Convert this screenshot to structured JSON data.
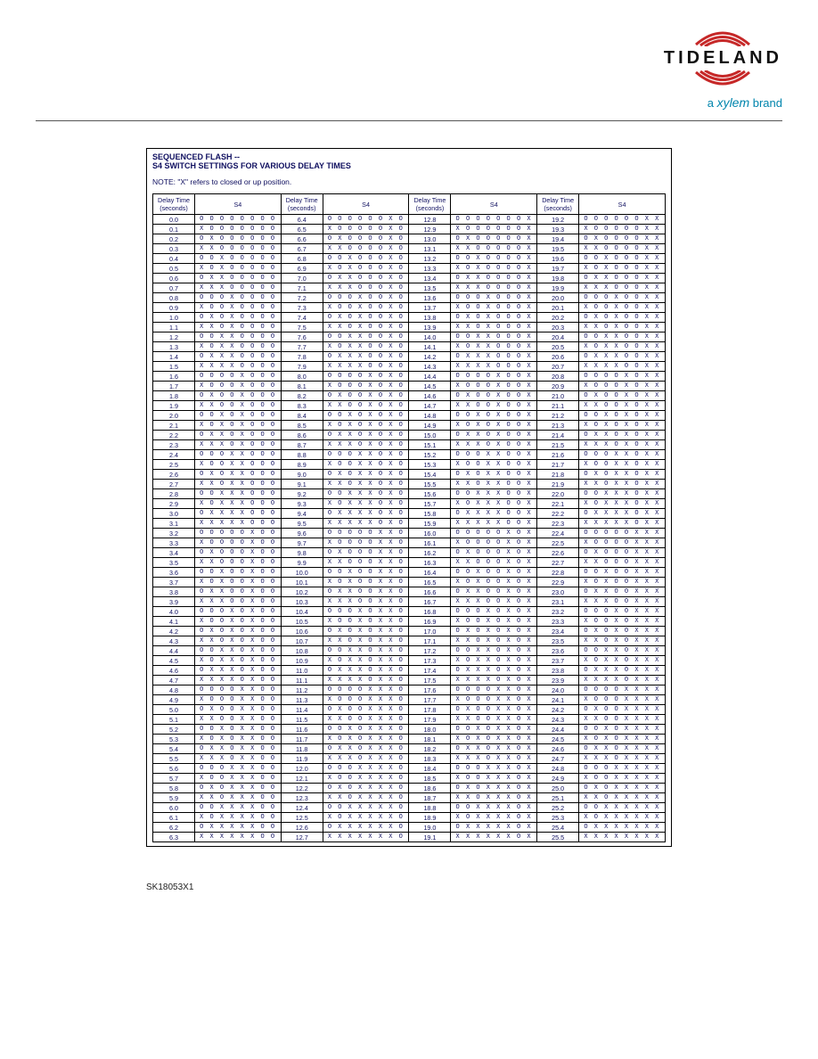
{
  "header": {
    "logo_text": "TIDELAND",
    "tagline_prefix": "a ",
    "tagline_brand": "xylem",
    "tagline_suffix": " brand",
    "logo_color": "#c62828",
    "tagline_color": "#0085ad"
  },
  "table": {
    "title_line1": "SEQUENCED FLASH --",
    "title_line2": "S4 SWITCH SETTINGS FOR VARIOUS DELAY TIMES",
    "note": "NOTE: \"X\" refers to closed or up position.",
    "header_delay_top": "Delay Time",
    "header_delay_bottom": "(seconds)",
    "header_s4": "S4",
    "rows": [
      [
        "0.0",
        "OOOOOOOO",
        "6.4",
        "OOOOOOXO",
        "12.8",
        "OOOOOOOX",
        "19.2",
        "OOOOOOXX"
      ],
      [
        "0.1",
        "XOOOOOOO",
        "6.5",
        "XOOOOOXO",
        "12.9",
        "XOOOOOOX",
        "19.3",
        "XOOOOOXX"
      ],
      [
        "0.2",
        "OXOOOOOO",
        "6.6",
        "OXOOOOXO",
        "13.0",
        "OXOOOOOX",
        "19.4",
        "OXOOOOXX"
      ],
      [
        "0.3",
        "XXOOOOOO",
        "6.7",
        "XXOOOOXO",
        "13.1",
        "XXOOOOOX",
        "19.5",
        "XXOOOOXX"
      ],
      [
        "0.4",
        "OOXOOOOO",
        "6.8",
        "OOXOOOXO",
        "13.2",
        "OOXOOOOX",
        "19.6",
        "OOXOOOXX"
      ],
      [
        "0.5",
        "XOXOOOOO",
        "6.9",
        "XOXOOOXO",
        "13.3",
        "XOXOOOOX",
        "19.7",
        "XOXOOOXX"
      ],
      [
        "0.6",
        "OXXOOOOO",
        "7.0",
        "OXXOOOXO",
        "13.4",
        "OXXOOOOX",
        "19.8",
        "OXXOOOXX"
      ],
      [
        "0.7",
        "XXXOOOOO",
        "7.1",
        "XXXOOOXO",
        "13.5",
        "XXXOOOOX",
        "19.9",
        "XXXOOOXX"
      ],
      [
        "0.8",
        "OOOXOOOO",
        "7.2",
        "OOOXOOXO",
        "13.6",
        "OOOXOOOX",
        "20.0",
        "OOOXOOXX"
      ],
      [
        "0.9",
        "XOOXOOOO",
        "7.3",
        "XOOXOOXO",
        "13.7",
        "XOOXOOOX",
        "20.1",
        "XOOXOOXX"
      ],
      [
        "1.0",
        "OXOXOOOO",
        "7.4",
        "OXOXOOXO",
        "13.8",
        "OXOXOOOX",
        "20.2",
        "OXOXOOXX"
      ],
      [
        "1.1",
        "XXOXOOOO",
        "7.5",
        "XXOXOOXO",
        "13.9",
        "XXOXOOOX",
        "20.3",
        "XXOXOOXX"
      ],
      [
        "1.2",
        "OOXXOOOO",
        "7.6",
        "OOXXOOXO",
        "14.0",
        "OOXXOOOX",
        "20.4",
        "OOXXOOXX"
      ],
      [
        "1.3",
        "XOXXOOOO",
        "7.7",
        "XOXXOOXO",
        "14.1",
        "XOXXOOOX",
        "20.5",
        "XOXXOOXX"
      ],
      [
        "1.4",
        "OXXXOOOO",
        "7.8",
        "OXXXOOXO",
        "14.2",
        "OXXXOOOX",
        "20.6",
        "OXXXOOXX"
      ],
      [
        "1.5",
        "XXXXOOOO",
        "7.9",
        "XXXXOOXO",
        "14.3",
        "XXXXOOOX",
        "20.7",
        "XXXXOOXX"
      ],
      [
        "1.6",
        "OOOOXOOO",
        "8.0",
        "OOOOXOXO",
        "14.4",
        "OOOOXOOX",
        "20.8",
        "OOOOXOXX"
      ],
      [
        "1.7",
        "XOOOXOOO",
        "8.1",
        "XOOOXOXO",
        "14.5",
        "XOOOXOOX",
        "20.9",
        "XOOOXOXX"
      ],
      [
        "1.8",
        "OXOOXOOO",
        "8.2",
        "OXOOXOXO",
        "14.6",
        "OXOOXOOX",
        "21.0",
        "OXOOXOXX"
      ],
      [
        "1.9",
        "XXOOXOOO",
        "8.3",
        "XXOOXOXO",
        "14.7",
        "XXOOXOOX",
        "21.1",
        "XXOOXOXX"
      ],
      [
        "2.0",
        "OOXOXOOO",
        "8.4",
        "OOXOXOXO",
        "14.8",
        "OOXOXOOX",
        "21.2",
        "OOXOXOXX"
      ],
      [
        "2.1",
        "XOXOXOOO",
        "8.5",
        "XOXOXOXO",
        "14.9",
        "XOXOXOOX",
        "21.3",
        "XOXOXOXX"
      ],
      [
        "2.2",
        "OXXOXOOO",
        "8.6",
        "OXXOXOXO",
        "15.0",
        "OXXOXOOX",
        "21.4",
        "OXXOXOXX"
      ],
      [
        "2.3",
        "XXXOXOOO",
        "8.7",
        "XXXOXOXO",
        "15.1",
        "XXXOXOOX",
        "21.5",
        "XXXOXOXX"
      ],
      [
        "2.4",
        "OOOXXOOO",
        "8.8",
        "OOOXXOXO",
        "15.2",
        "OOOXXOOX",
        "21.6",
        "OOOXXOXX"
      ],
      [
        "2.5",
        "XOOXXOOO",
        "8.9",
        "XOOXXOXO",
        "15.3",
        "XOOXXOOX",
        "21.7",
        "XOOXXOXX"
      ],
      [
        "2.6",
        "OXOXXOOO",
        "9.0",
        "OXOXXOXO",
        "15.4",
        "OXOXXOOX",
        "21.8",
        "OXOXXOXX"
      ],
      [
        "2.7",
        "XXOXXOOO",
        "9.1",
        "XXOXXOXO",
        "15.5",
        "XXOXXOOX",
        "21.9",
        "XXOXXOXX"
      ],
      [
        "2.8",
        "OOXXXOOO",
        "9.2",
        "OOXXXOXO",
        "15.6",
        "OOXXXOOX",
        "22.0",
        "OOXXXOXX"
      ],
      [
        "2.9",
        "XOXXXOOO",
        "9.3",
        "XOXXXOXO",
        "15.7",
        "XOXXXOOX",
        "22.1",
        "XOXXXOXX"
      ],
      [
        "3.0",
        "OXXXXOOO",
        "9.4",
        "OXXXXOXO",
        "15.8",
        "OXXXXOOX",
        "22.2",
        "OXXXXOXX"
      ],
      [
        "3.1",
        "XXXXXOOO",
        "9.5",
        "XXXXXOXO",
        "15.9",
        "XXXXXOOX",
        "22.3",
        "XXXXXOXX"
      ],
      [
        "3.2",
        "OOOOOXOO",
        "9.6",
        "OOOOOXXO",
        "16.0",
        "OOOOOXOX",
        "22.4",
        "OOOOOXXX"
      ],
      [
        "3.3",
        "XOOOOXOO",
        "9.7",
        "XOOOOXXO",
        "16.1",
        "XOOOOXOX",
        "22.5",
        "XOOOOXXX"
      ],
      [
        "3.4",
        "OXOOOXOO",
        "9.8",
        "OXOOOXXO",
        "16.2",
        "OXOOOXOX",
        "22.6",
        "OXOOOXXX"
      ],
      [
        "3.5",
        "XXOOOXOO",
        "9.9",
        "XXOOOXXO",
        "16.3",
        "XXOOOXOX",
        "22.7",
        "XXOOOXXX"
      ],
      [
        "3.6",
        "OOXOOXOO",
        "10.0",
        "OOXOOXXO",
        "16.4",
        "OOXOOXOX",
        "22.8",
        "OOXOOXXX"
      ],
      [
        "3.7",
        "XOXOOXOO",
        "10.1",
        "XOXOOXXO",
        "16.5",
        "XOXOOXOX",
        "22.9",
        "XOXOOXXX"
      ],
      [
        "3.8",
        "OXXOOXOO",
        "10.2",
        "OXXOOXXO",
        "16.6",
        "OXXOOXOX",
        "23.0",
        "OXXOOXXX"
      ],
      [
        "3.9",
        "XXXOOXOO",
        "10.3",
        "XXXOOXXO",
        "16.7",
        "XXXOOXOX",
        "23.1",
        "XXXOOXXX"
      ],
      [
        "4.0",
        "OOOXOXOO",
        "10.4",
        "OOOXOXXO",
        "16.8",
        "OOOXOXOX",
        "23.2",
        "OOOXOXXX"
      ],
      [
        "4.1",
        "XOOXOXOO",
        "10.5",
        "XOOXOXXO",
        "16.9",
        "XOOXOXOX",
        "23.3",
        "XOOXOXXX"
      ],
      [
        "4.2",
        "OXOXOXOO",
        "10.6",
        "OXOXOXXO",
        "17.0",
        "OXOXOXOX",
        "23.4",
        "OXOXOXXX"
      ],
      [
        "4.3",
        "XXOXOXOO",
        "10.7",
        "XXOXOXXO",
        "17.1",
        "XXOXOXOX",
        "23.5",
        "XXOXOXXX"
      ],
      [
        "4.4",
        "OOXXOXOO",
        "10.8",
        "OOXXOXXO",
        "17.2",
        "OOXXOXOX",
        "23.6",
        "OOXXOXXX"
      ],
      [
        "4.5",
        "XOXXOXOO",
        "10.9",
        "XOXXOXXO",
        "17.3",
        "XOXXOXOX",
        "23.7",
        "XOXXOXXX"
      ],
      [
        "4.6",
        "OXXXOXOO",
        "11.0",
        "OXXXOXXO",
        "17.4",
        "OXXXOXOX",
        "23.8",
        "OXXXOXXX"
      ],
      [
        "4.7",
        "XXXXOXOO",
        "11.1",
        "XXXXOXXO",
        "17.5",
        "XXXXOXOX",
        "23.9",
        "XXXXOXXX"
      ],
      [
        "4.8",
        "OOOOXXOO",
        "11.2",
        "OOOOXXXO",
        "17.6",
        "OOOOXXOX",
        "24.0",
        "OOOOXXXX"
      ],
      [
        "4.9",
        "XOOOXXOO",
        "11.3",
        "XOOOXXXO",
        "17.7",
        "XOOOXXOX",
        "24.1",
        "XOOOXXXX"
      ],
      [
        "5.0",
        "OXOOXXOO",
        "11.4",
        "OXOOXXXO",
        "17.8",
        "OXOOXXOX",
        "24.2",
        "OXOOXXXX"
      ],
      [
        "5.1",
        "XXOOXXOO",
        "11.5",
        "XXOOXXXO",
        "17.9",
        "XXOOXXOX",
        "24.3",
        "XXOOXXXX"
      ],
      [
        "5.2",
        "OOXOXXOO",
        "11.6",
        "OOXOXXXO",
        "18.0",
        "OOXOXXOX",
        "24.4",
        "OOXOXXXX"
      ],
      [
        "5.3",
        "XOXOXXOO",
        "11.7",
        "XOXOXXXO",
        "18.1",
        "XOXOXXOX",
        "24.5",
        "XOXOXXXX"
      ],
      [
        "5.4",
        "OXXOXXOO",
        "11.8",
        "OXXOXXXO",
        "18.2",
        "OXXOXXOX",
        "24.6",
        "OXXOXXXX"
      ],
      [
        "5.5",
        "XXXOXXOO",
        "11.9",
        "XXXOXXXO",
        "18.3",
        "XXXOXXOX",
        "24.7",
        "XXXOXXXX"
      ],
      [
        "5.6",
        "OOOXXXOO",
        "12.0",
        "OOOXXXXO",
        "18.4",
        "OOOXXXOX",
        "24.8",
        "OOOXXXXX"
      ],
      [
        "5.7",
        "XOOXXXOO",
        "12.1",
        "XOOXXXXO",
        "18.5",
        "XOOXXXOX",
        "24.9",
        "XOOXXXXX"
      ],
      [
        "5.8",
        "OXOXXXOO",
        "12.2",
        "OXOXXXXO",
        "18.6",
        "OXOXXXOX",
        "25.0",
        "OXOXXXXX"
      ],
      [
        "5.9",
        "XXOXXXOO",
        "12.3",
        "XXOXXXXO",
        "18.7",
        "XXOXXXOX",
        "25.1",
        "XXOXXXXX"
      ],
      [
        "6.0",
        "OOXXXXOO",
        "12.4",
        "OOXXXXXO",
        "18.8",
        "OOXXXXOX",
        "25.2",
        "OOXXXXXX"
      ],
      [
        "6.1",
        "XOXXXXOO",
        "12.5",
        "XOXXXXXO",
        "18.9",
        "XOXXXXOX",
        "25.3",
        "XOXXXXXX"
      ],
      [
        "6.2",
        "OXXXXXOO",
        "12.6",
        "OXXXXXXO",
        "19.0",
        "OXXXXXOX",
        "25.4",
        "OXXXXXXX"
      ],
      [
        "6.3",
        "XXXXXXOO",
        "12.7",
        "XXXXXXXO",
        "19.1",
        "XXXXXXOX",
        "25.5",
        "XXXXXXXX"
      ]
    ]
  },
  "footer": {
    "code": "SK18053X1"
  }
}
